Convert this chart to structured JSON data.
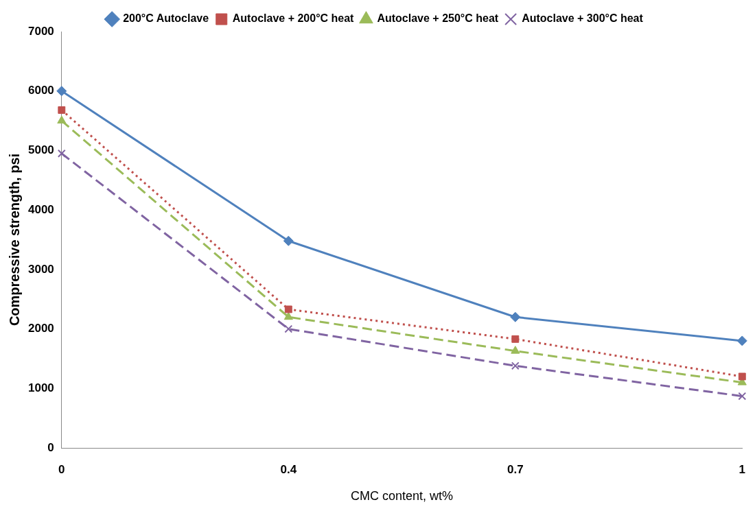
{
  "chart_data": {
    "type": "line",
    "xlabel": "CMC content, wt%",
    "ylabel": "Compressive strength, psi",
    "categories": [
      "0",
      "0.4",
      "0.7",
      "1"
    ],
    "series": [
      {
        "name": "200°C Autoclave",
        "color": "#4f81bd",
        "values": [
          6000,
          3480,
          2200,
          1800
        ],
        "marker": "diamond",
        "line_style": "solid"
      },
      {
        "name": "Autoclave + 200°C heat",
        "color": "#c0504d",
        "values": [
          5680,
          2330,
          1830,
          1200
        ],
        "marker": "square",
        "line_style": "dotted"
      },
      {
        "name": "Autoclave + 250°C heat",
        "color": "#9bbb59",
        "values": [
          5500,
          2200,
          1630,
          1100
        ],
        "marker": "triangle",
        "line_style": "dashed"
      },
      {
        "name": "Autoclave + 300°C heat",
        "color": "#8064a2",
        "values": [
          4950,
          2000,
          1380,
          870
        ],
        "marker": "cross",
        "line_style": "dashed"
      }
    ],
    "ylim": [
      0,
      7000
    ],
    "yticks": [
      0,
      1000,
      2000,
      3000,
      4000,
      5000,
      6000,
      7000
    ],
    "grid": false,
    "legend": "top"
  }
}
